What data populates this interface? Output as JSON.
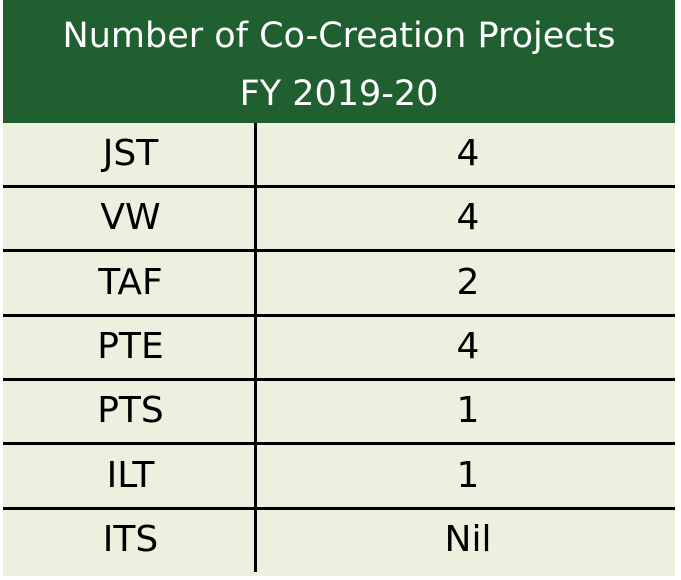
{
  "colors": {
    "header_bg": "#1f5f30",
    "header_text": "#ffffff",
    "body_bg": "#ebf1de",
    "grid_lines": "#000000"
  },
  "chart_data": {
    "type": "table",
    "title": "Number of Co-Creation Projects",
    "subtitle": "FY 2019-20",
    "rows": [
      {
        "name": "JST",
        "count": "4"
      },
      {
        "name": "VW",
        "count": "4"
      },
      {
        "name": "TAF",
        "count": "2"
      },
      {
        "name": "PTE",
        "count": "4"
      },
      {
        "name": "PTS",
        "count": "1"
      },
      {
        "name": "ILT",
        "count": "1"
      },
      {
        "name": "ITS",
        "count": "Nil"
      }
    ]
  }
}
